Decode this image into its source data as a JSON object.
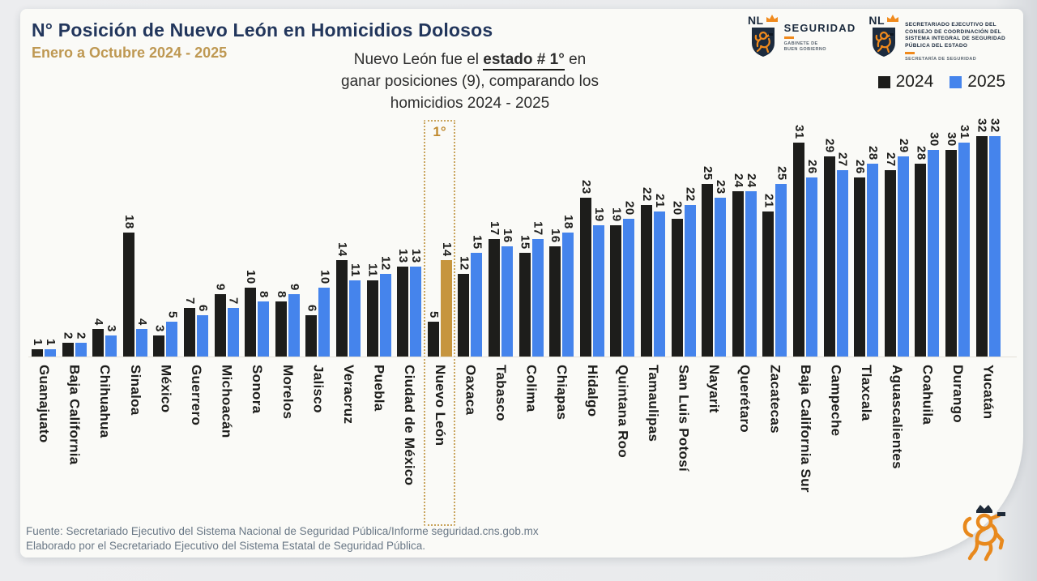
{
  "title": "N° Posición de Nuevo León en Homicidios Dolosos",
  "subtitle": "Enero a Octubre 2024 - 2025",
  "annotation": {
    "line1_prefix": "Nuevo León fue el ",
    "line1_emph": "estado # 1°",
    "line1_suffix": " en",
    "line2": "ganar posiciones (9), comparando los",
    "line3": "homicidios 2024 - 2025"
  },
  "highlight_badge": "1°",
  "legend": [
    {
      "label": "2024",
      "color": "#1d1d1b"
    },
    {
      "label": "2025",
      "color": "#4584ec"
    }
  ],
  "logos": {
    "seguridad": {
      "nl": "NL",
      "name": "SEGURIDAD",
      "sub_lines": [
        "GABINETE DE",
        "BUEN GOBIERNO"
      ]
    },
    "secretariado": {
      "nl": "NL",
      "org_lines": [
        "SECRETARIADO EJECUTIVO DEL",
        "CONSEJO DE COORDINACIÓN DEL",
        "SISTEMA INTEGRAL DE SEGURIDAD",
        "PÚBLICA DEL ESTADO"
      ],
      "sub": "SECRETARÍA DE SEGURIDAD"
    }
  },
  "footer": {
    "line1": "Fuente: Secretariado Ejecutivo del Sistema Nacional de Seguridad Pública/Informe seguridad.cns.gob.mx",
    "line2": "Elaborado por el Secretariado Ejecutivo del Sistema Estatal de Seguridad Pública."
  },
  "chart_data": {
    "type": "bar",
    "title": "N° Posición de Nuevo León en Homicidios Dolosos",
    "subtitle": "Enero a Octubre 2024 - 2025",
    "categories": [
      "Guanajuato",
      "Baja California",
      "Chihuahua",
      "Sinaloa",
      "México",
      "Guerrero",
      "Michoacán",
      "Sonora",
      "Morelos",
      "Jalisco",
      "Veracruz",
      "Puebla",
      "Ciudad de México",
      "Nuevo León",
      "Oaxaca",
      "Tabasco",
      "Colima",
      "Chiapas",
      "Hidalgo",
      "Quintana Roo",
      "Tamaulipas",
      "San Luis Potosí",
      "Nayarit",
      "Querétaro",
      "Zacatecas",
      "Baja California Sur",
      "Campeche",
      "Tlaxcala",
      "Aguascalientes",
      "Coahuila",
      "Durango",
      "Yucatán"
    ],
    "series": [
      {
        "name": "2024",
        "color": "#1d1d1b",
        "values": [
          1,
          2,
          4,
          18,
          3,
          7,
          9,
          10,
          8,
          6,
          14,
          11,
          13,
          5,
          12,
          17,
          15,
          16,
          23,
          19,
          22,
          20,
          25,
          24,
          21,
          31,
          29,
          26,
          27,
          28,
          30,
          32
        ]
      },
      {
        "name": "2025",
        "color": "#4584ec",
        "values": [
          1,
          2,
          3,
          4,
          5,
          6,
          7,
          8,
          9,
          10,
          11,
          12,
          13,
          14,
          15,
          16,
          17,
          18,
          19,
          20,
          21,
          22,
          23,
          24,
          25,
          26,
          27,
          28,
          29,
          30,
          31,
          32
        ]
      }
    ],
    "highlight": {
      "category": "Nuevo León",
      "series": "2025",
      "color": "#c6953e",
      "box_color": "#c9a45c",
      "badge": "1°"
    },
    "value_labels": true,
    "grid": false,
    "ylim": [
      0,
      32
    ],
    "legend_position": "top-right",
    "xlabel": "",
    "ylabel": ""
  }
}
